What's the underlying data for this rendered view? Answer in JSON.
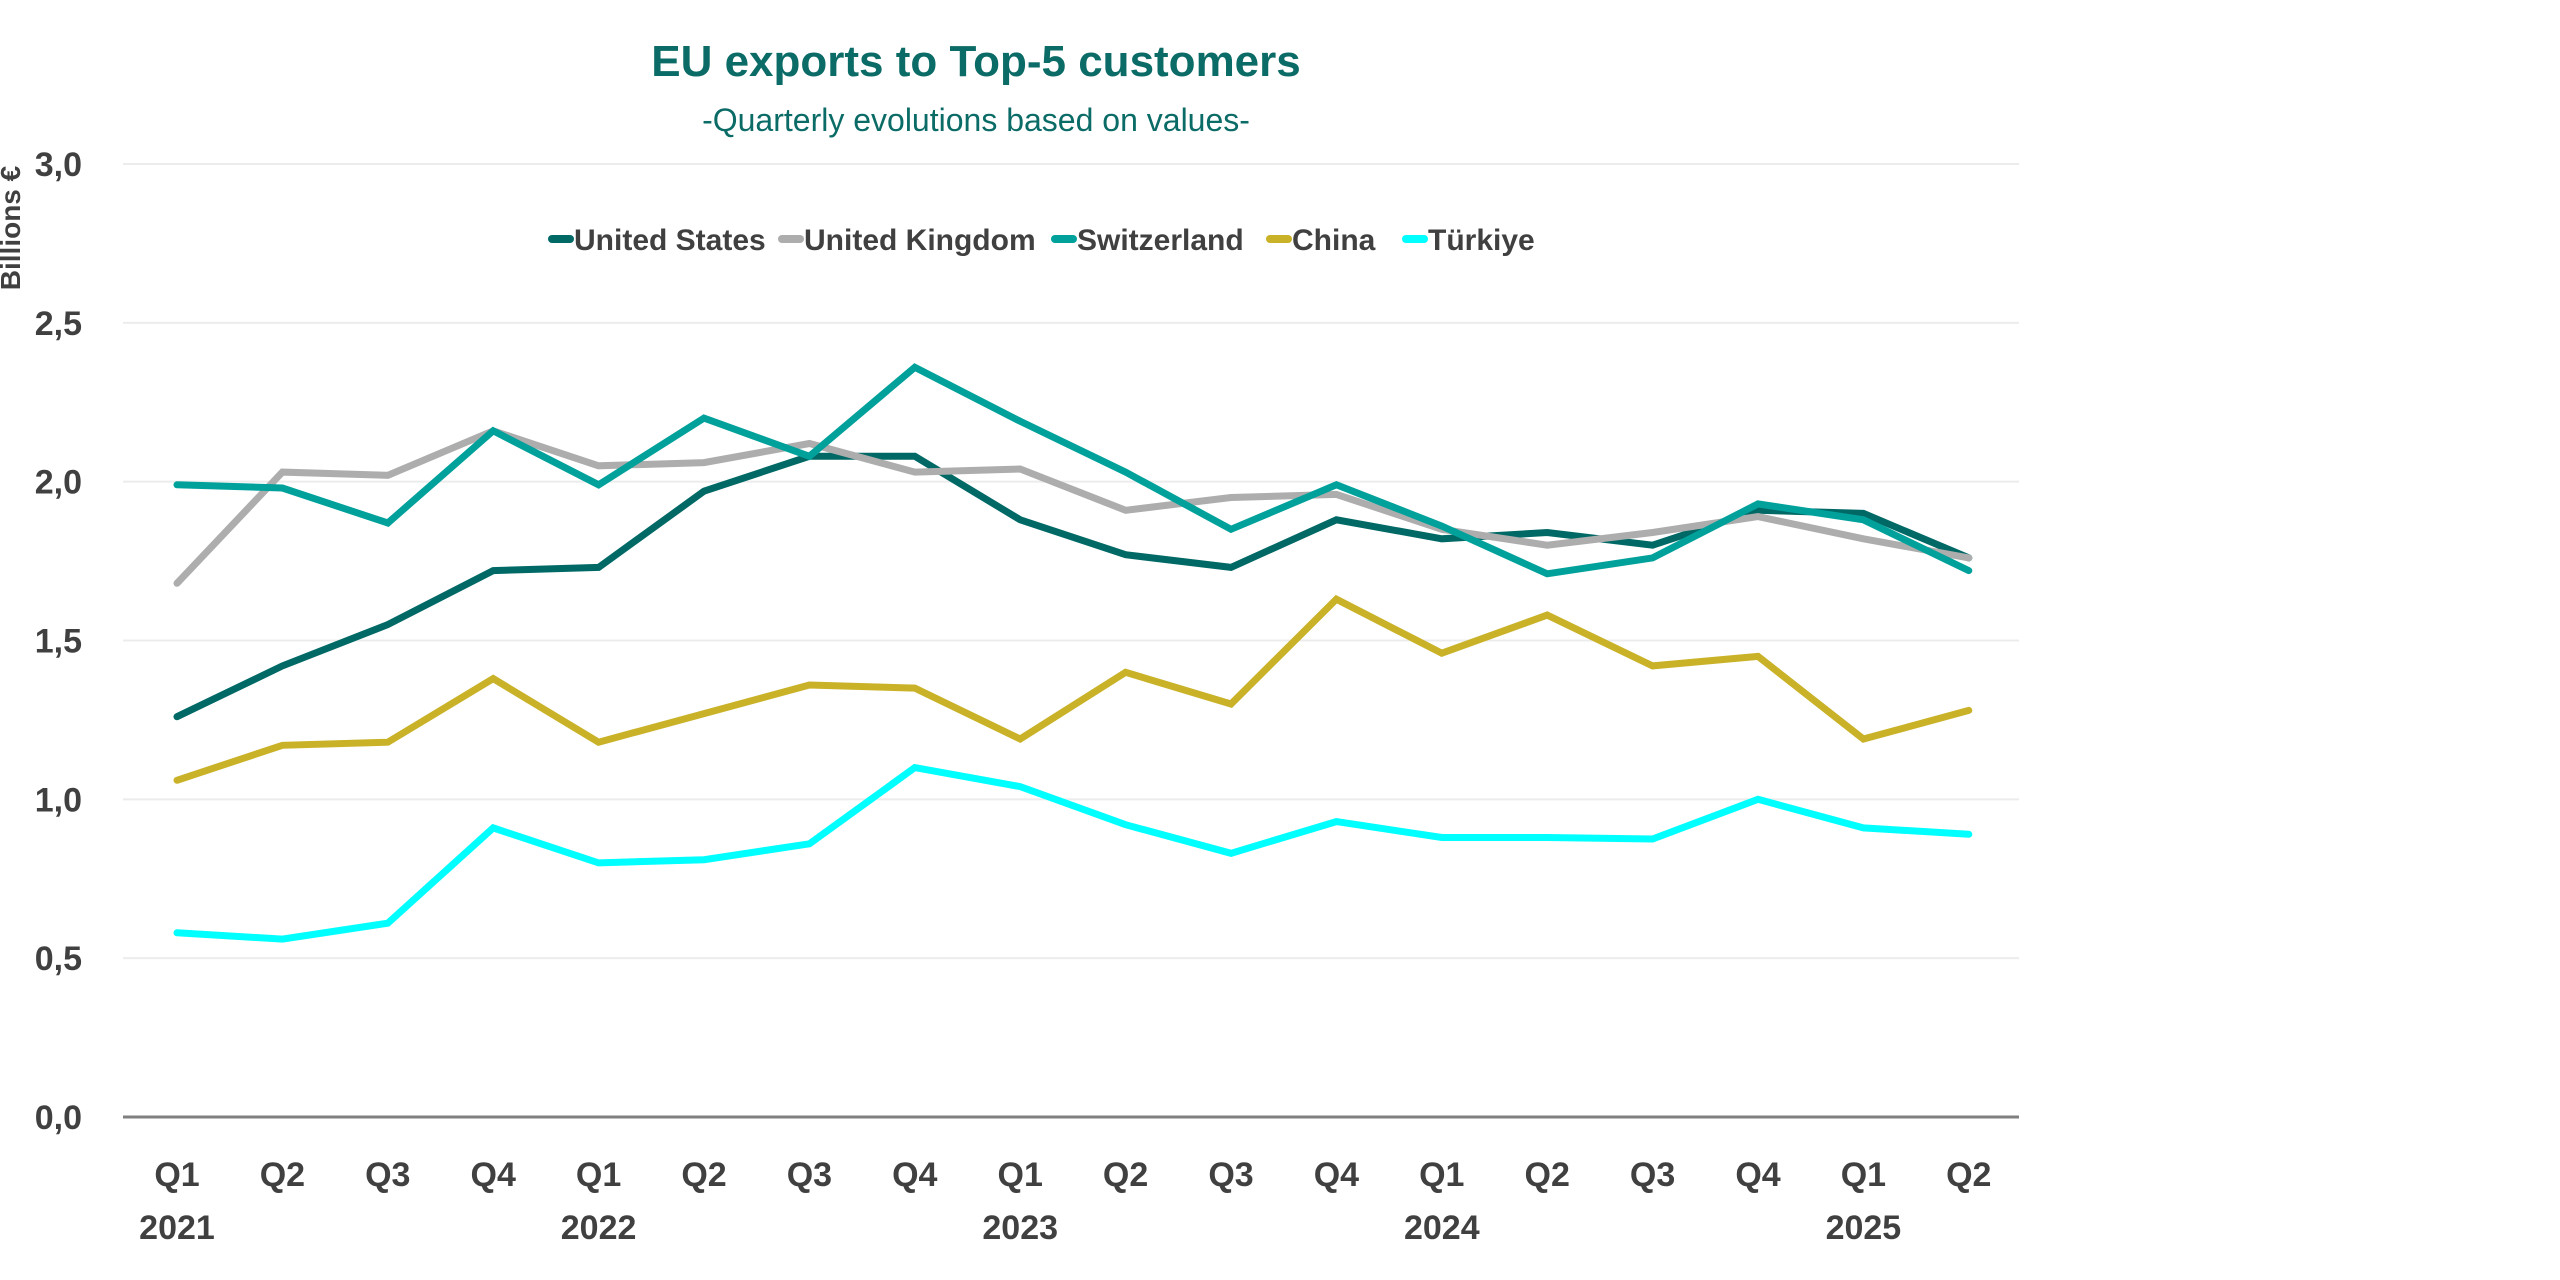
{
  "chart_data": {
    "type": "line",
    "title": "EU exports to Top-5 customers",
    "subtitle": "-Quarterly evolutions based on values-",
    "xlabel": "",
    "ylabel": "Billions €",
    "ylim": [
      0,
      3.0
    ],
    "yticks": [
      "0,0",
      "0,5",
      "1,0",
      "1,5",
      "2,0",
      "2,5",
      "3,0"
    ],
    "ytick_values": [
      0,
      0.5,
      1.0,
      1.5,
      2.0,
      2.5,
      3.0
    ],
    "grid": true,
    "legend_position": "top-center",
    "x": [
      "Q1 2021",
      "Q2 2021",
      "Q3 2021",
      "Q4 2021",
      "Q1 2022",
      "Q2 2022",
      "Q3 2022",
      "Q4 2022",
      "Q1 2023",
      "Q2 2023",
      "Q3 2023",
      "Q4 2023",
      "Q1 2024",
      "Q2 2024",
      "Q3 2024",
      "Q4 2024",
      "Q1 2025",
      "Q2 2025"
    ],
    "quarter_labels": [
      "Q1",
      "Q2",
      "Q3",
      "Q4",
      "Q1",
      "Q2",
      "Q3",
      "Q4",
      "Q1",
      "Q2",
      "Q3",
      "Q4",
      "Q1",
      "Q2",
      "Q3",
      "Q4",
      "Q1",
      "Q2"
    ],
    "year_labels": [
      {
        "label": "2021",
        "at_index": 0
      },
      {
        "label": "2022",
        "at_index": 4
      },
      {
        "label": "2023",
        "at_index": 8
      },
      {
        "label": "2024",
        "at_index": 12
      },
      {
        "label": "2025",
        "at_index": 16
      }
    ],
    "series": [
      {
        "name": "United States",
        "color": "#006966",
        "values": [
          1.26,
          1.42,
          1.55,
          1.72,
          1.73,
          1.97,
          2.08,
          2.08,
          1.88,
          1.77,
          1.73,
          1.88,
          1.82,
          1.84,
          1.8,
          1.91,
          1.9,
          1.76
        ]
      },
      {
        "name": "United Kingdom",
        "color": "#adadad",
        "values": [
          1.68,
          2.03,
          2.02,
          2.16,
          2.05,
          2.06,
          2.12,
          2.03,
          2.04,
          1.91,
          1.95,
          1.96,
          1.85,
          1.8,
          1.84,
          1.89,
          1.82,
          1.76
        ]
      },
      {
        "name": "Switzerland",
        "color": "#00a19b",
        "values": [
          1.99,
          1.98,
          1.87,
          2.16,
          1.99,
          2.2,
          2.08,
          2.36,
          2.19,
          2.03,
          1.85,
          1.99,
          1.86,
          1.71,
          1.76,
          1.93,
          1.88,
          1.72
        ]
      },
      {
        "name": "China",
        "color": "#c9b227",
        "values": [
          1.06,
          1.17,
          1.18,
          1.38,
          1.18,
          1.27,
          1.36,
          1.35,
          1.19,
          1.4,
          1.3,
          1.63,
          1.46,
          1.58,
          1.42,
          1.45,
          1.19,
          1.28
        ]
      },
      {
        "name": "Türkiye",
        "color": "#00ffff",
        "values": [
          0.58,
          0.56,
          0.61,
          0.91,
          0.8,
          0.81,
          0.86,
          1.1,
          1.04,
          0.92,
          0.83,
          0.93,
          0.88,
          0.88,
          0.875,
          1.0,
          0.91,
          0.89
        ]
      }
    ]
  }
}
